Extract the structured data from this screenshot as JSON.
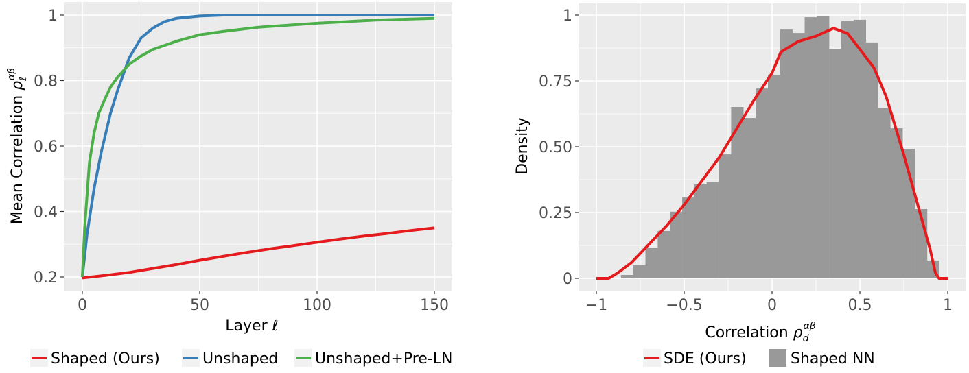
{
  "chart_data": [
    {
      "type": "line",
      "title": "",
      "xlabel": "Layer ℓ",
      "ylabel": "Mean Correlation ρ_ℓ^{αβ}",
      "xlim": [
        -7,
        157
      ],
      "ylim": [
        0.162,
        1.039
      ],
      "xticks": [
        0,
        50,
        100,
        150
      ],
      "xtick_labels": [
        "0",
        "50",
        "100",
        "150"
      ],
      "yticks": [
        0.2,
        0.4,
        0.6,
        0.8,
        1.0
      ],
      "ytick_labels": [
        "0.2",
        "0.4",
        "0.6",
        "0.8",
        "1"
      ],
      "grid": true,
      "legend_position": "bottom",
      "series": [
        {
          "name": "Shaped (Ours)",
          "color": "#e41a1c",
          "x": [
            0,
            10,
            20,
            30,
            40,
            50,
            60,
            70,
            80,
            90,
            100,
            110,
            120,
            130,
            140,
            150
          ],
          "values": [
            0.197,
            0.205,
            0.214,
            0.226,
            0.238,
            0.251,
            0.263,
            0.275,
            0.286,
            0.296,
            0.306,
            0.316,
            0.325,
            0.333,
            0.342,
            0.35
          ]
        },
        {
          "name": "Unshaped",
          "color": "#377eb8",
          "x": [
            0,
            2,
            5,
            8,
            10,
            12,
            15,
            18,
            20,
            25,
            30,
            35,
            40,
            50,
            60,
            100,
            150
          ],
          "values": [
            0.2,
            0.33,
            0.47,
            0.58,
            0.64,
            0.7,
            0.77,
            0.83,
            0.87,
            0.93,
            0.96,
            0.98,
            0.99,
            0.997,
            1.0,
            1.0,
            1.0
          ]
        },
        {
          "name": "Unshaped+Pre-LN",
          "color": "#4daf4a",
          "x": [
            0,
            1,
            3,
            5,
            7,
            10,
            12,
            15,
            20,
            25,
            30,
            40,
            50,
            60,
            75,
            100,
            125,
            150
          ],
          "values": [
            0.2,
            0.35,
            0.55,
            0.64,
            0.7,
            0.75,
            0.78,
            0.81,
            0.85,
            0.875,
            0.895,
            0.92,
            0.94,
            0.95,
            0.963,
            0.975,
            0.985,
            0.99
          ]
        }
      ]
    },
    {
      "type": "bar",
      "title": "",
      "xlabel": "Correlation ρ_d^{αβ}",
      "ylabel": "Density",
      "xlim": [
        -1.1,
        1.1
      ],
      "ylim": [
        -0.05,
        1.05
      ],
      "xticks": [
        -1,
        -0.5,
        0,
        0.5,
        1
      ],
      "xtick_labels": [
        "−1",
        "−0.5",
        "0",
        "0.5",
        "1"
      ],
      "yticks": [
        0,
        0.25,
        0.5,
        0.75,
        1
      ],
      "ytick_labels": [
        "0",
        "0.25",
        "0.50",
        "0.75",
        "1"
      ],
      "grid": true,
      "legend_position": "bottom",
      "histogram": {
        "name": "Shaped NN",
        "color": "#999999",
        "bin_start": -0.86,
        "bin_width": 0.0697,
        "values": [
          0.013,
          0.05,
          0.117,
          0.18,
          0.253,
          0.307,
          0.357,
          0.365,
          0.471,
          0.651,
          0.609,
          0.721,
          0.773,
          0.945,
          0.932,
          0.992,
          0.995,
          0.872,
          0.977,
          0.982,
          0.896,
          0.648,
          0.57,
          0.492,
          0.263,
          0.068
        ]
      },
      "series": [
        {
          "name": "SDE (Ours)",
          "type": "line",
          "color": "#e41a1c",
          "x": [
            -1,
            -0.93,
            -0.88,
            -0.8,
            -0.7,
            -0.6,
            -0.5,
            -0.4,
            -0.3,
            -0.2,
            -0.1,
            0,
            0.05,
            0.1,
            0.15,
            0.25,
            0.35,
            0.43,
            0.5,
            0.58,
            0.65,
            0.7,
            0.75,
            0.8,
            0.85,
            0.9,
            0.93,
            0.95,
            1
          ],
          "values": [
            0,
            0,
            0.02,
            0.06,
            0.13,
            0.2,
            0.28,
            0.37,
            0.46,
            0.57,
            0.68,
            0.78,
            0.86,
            0.88,
            0.9,
            0.92,
            0.95,
            0.93,
            0.87,
            0.8,
            0.69,
            0.58,
            0.47,
            0.35,
            0.23,
            0.11,
            0.02,
            0,
            0
          ]
        }
      ]
    }
  ],
  "left": {
    "xlabel": "Layer",
    "xlabel_sym": "ℓ",
    "ylabel": "Mean Correlation",
    "ylabel_sym": "ρ",
    "ylabel_sup": "αβ",
    "ylabel_sub": "ℓ",
    "legend": [
      "Shaped (Ours)",
      "Unshaped",
      "Unshaped+Pre-LN"
    ]
  },
  "right": {
    "xlabel": "Correlation",
    "xlabel_sym": "ρ",
    "xlabel_sup": "αβ",
    "xlabel_sub": "d",
    "ylabel": "Density",
    "legend": [
      "SDE (Ours)",
      "Shaped NN"
    ]
  },
  "colors": {
    "panel_bg": "#ebebeb",
    "grid": "#ffffff",
    "tick_text": "#4d4d4d",
    "red": "#e41a1c",
    "blue": "#377eb8",
    "green": "#4daf4a",
    "bar": "#999999"
  }
}
